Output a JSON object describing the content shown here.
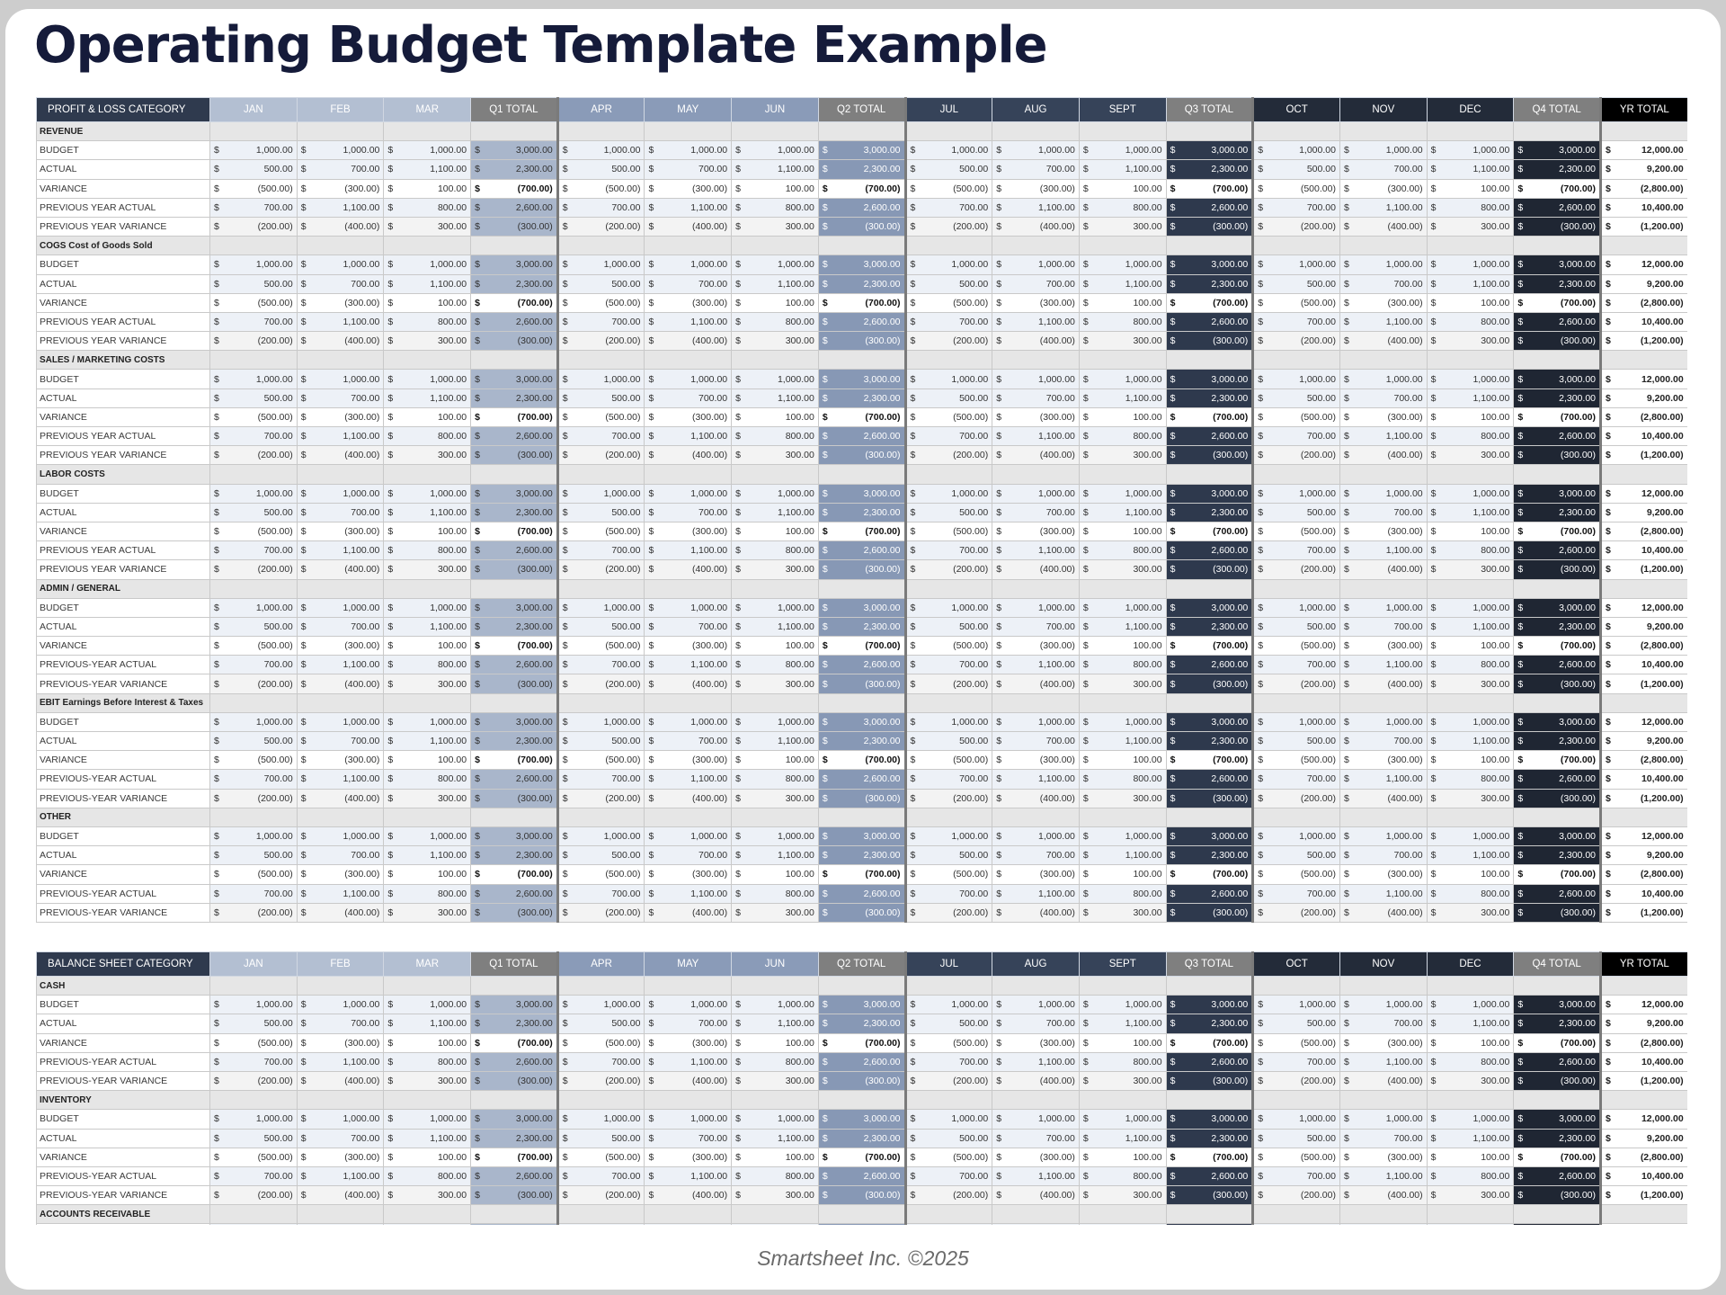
{
  "title": "Operating Budget Template Example",
  "footer": "Smartsheet Inc. ©2025",
  "columns": [
    {
      "label": "JAN",
      "group": "g1"
    },
    {
      "label": "FEB",
      "group": "g1"
    },
    {
      "label": "MAR",
      "group": "g1"
    },
    {
      "label": "Q1 TOTAL",
      "group": "t1"
    },
    {
      "label": "APR",
      "group": "g2"
    },
    {
      "label": "MAY",
      "group": "g2"
    },
    {
      "label": "JUN",
      "group": "g2"
    },
    {
      "label": "Q2 TOTAL",
      "group": "t2"
    },
    {
      "label": "JUL",
      "group": "g3"
    },
    {
      "label": "AUG",
      "group": "g3"
    },
    {
      "label": "SEPT",
      "group": "g3"
    },
    {
      "label": "Q3 TOTAL",
      "group": "t3"
    },
    {
      "label": "OCT",
      "group": "g4"
    },
    {
      "label": "NOV",
      "group": "g4"
    },
    {
      "label": "DEC",
      "group": "g4"
    },
    {
      "label": "Q4 TOTAL",
      "group": "t4"
    },
    {
      "label": "YR TOTAL",
      "group": "yr"
    }
  ],
  "currency_symbol": "$",
  "row_values": {
    "budget": [
      "1,000.00",
      "1,000.00",
      "1,000.00",
      "3,000.00",
      "1,000.00",
      "1,000.00",
      "1,000.00",
      "3,000.00",
      "1,000.00",
      "1,000.00",
      "1,000.00",
      "3,000.00",
      "1,000.00",
      "1,000.00",
      "1,000.00",
      "3,000.00",
      "12,000.00"
    ],
    "actual": [
      "500.00",
      "700.00",
      "1,100.00",
      "2,300.00",
      "500.00",
      "700.00",
      "1,100.00",
      "2,300.00",
      "500.00",
      "700.00",
      "1,100.00",
      "2,300.00",
      "500.00",
      "700.00",
      "1,100.00",
      "2,300.00",
      "9,200.00"
    ],
    "variance": [
      "(500.00)",
      "(300.00)",
      "100.00",
      "(700.00)",
      "(500.00)",
      "(300.00)",
      "100.00",
      "(700.00)",
      "(500.00)",
      "(300.00)",
      "100.00",
      "(700.00)",
      "(500.00)",
      "(300.00)",
      "100.00",
      "(700.00)",
      "(2,800.00)"
    ],
    "pya": [
      "700.00",
      "1,100.00",
      "800.00",
      "2,600.00",
      "700.00",
      "1,100.00",
      "800.00",
      "2,600.00",
      "700.00",
      "1,100.00",
      "800.00",
      "2,600.00",
      "700.00",
      "1,100.00",
      "800.00",
      "2,600.00",
      "10,400.00"
    ],
    "pyv": [
      "(200.00)",
      "(400.00)",
      "300.00",
      "(300.00)",
      "(200.00)",
      "(400.00)",
      "300.00",
      "(300.00)",
      "(200.00)",
      "(400.00)",
      "300.00",
      "(300.00)",
      "(200.00)",
      "(400.00)",
      "300.00",
      "(300.00)",
      "(1,200.00)"
    ]
  },
  "tables": [
    {
      "header_label": "PROFIT & LOSS CATEGORY",
      "sections": [
        {
          "name": "REVENUE",
          "rows": [
            {
              "label": "BUDGET",
              "values": "budget"
            },
            {
              "label": "ACTUAL",
              "values": "actual"
            },
            {
              "label": "VARIANCE",
              "values": "variance"
            },
            {
              "label": "PREVIOUS YEAR ACTUAL",
              "values": "pya"
            },
            {
              "label": "PREVIOUS YEAR VARIANCE",
              "values": "pyv"
            }
          ]
        },
        {
          "name": "COGS Cost of Goods Sold",
          "rows": [
            {
              "label": "BUDGET",
              "values": "budget"
            },
            {
              "label": "ACTUAL",
              "values": "actual"
            },
            {
              "label": "VARIANCE",
              "values": "variance"
            },
            {
              "label": "PREVIOUS YEAR ACTUAL",
              "values": "pya"
            },
            {
              "label": "PREVIOUS YEAR VARIANCE",
              "values": "pyv"
            }
          ]
        },
        {
          "name": "SALES / MARKETING COSTS",
          "rows": [
            {
              "label": "BUDGET",
              "values": "budget"
            },
            {
              "label": "ACTUAL",
              "values": "actual"
            },
            {
              "label": "VARIANCE",
              "values": "variance"
            },
            {
              "label": "PREVIOUS YEAR ACTUAL",
              "values": "pya"
            },
            {
              "label": "PREVIOUS YEAR VARIANCE",
              "values": "pyv"
            }
          ]
        },
        {
          "name": "LABOR COSTS",
          "rows": [
            {
              "label": "BUDGET",
              "values": "budget"
            },
            {
              "label": "ACTUAL",
              "values": "actual"
            },
            {
              "label": "VARIANCE",
              "values": "variance"
            },
            {
              "label": "PREVIOUS YEAR ACTUAL",
              "values": "pya"
            },
            {
              "label": "PREVIOUS YEAR VARIANCE",
              "values": "pyv"
            }
          ]
        },
        {
          "name": "ADMIN / GENERAL",
          "rows": [
            {
              "label": "BUDGET",
              "values": "budget"
            },
            {
              "label": "ACTUAL",
              "values": "actual"
            },
            {
              "label": "VARIANCE",
              "values": "variance"
            },
            {
              "label": "PREVIOUS-YEAR ACTUAL",
              "values": "pya"
            },
            {
              "label": "PREVIOUS-YEAR VARIANCE",
              "values": "pyv"
            }
          ]
        },
        {
          "name": "EBIT Earnings Before Interest & Taxes",
          "rows": [
            {
              "label": "BUDGET",
              "values": "budget"
            },
            {
              "label": "ACTUAL",
              "values": "actual"
            },
            {
              "label": "VARIANCE",
              "values": "variance"
            },
            {
              "label": "PREVIOUS-YEAR ACTUAL",
              "values": "pya"
            },
            {
              "label": "PREVIOUS-YEAR VARIANCE",
              "values": "pyv"
            }
          ]
        },
        {
          "name": "OTHER",
          "rows": [
            {
              "label": "BUDGET",
              "values": "budget"
            },
            {
              "label": "ACTUAL",
              "values": "actual"
            },
            {
              "label": "VARIANCE",
              "values": "variance"
            },
            {
              "label": "PREVIOUS-YEAR ACTUAL",
              "values": "pya"
            },
            {
              "label": "PREVIOUS-YEAR VARIANCE",
              "values": "pyv"
            }
          ]
        }
      ]
    },
    {
      "header_label": "BALANCE SHEET CATEGORY",
      "sections": [
        {
          "name": "CASH",
          "rows": [
            {
              "label": "BUDGET",
              "values": "budget"
            },
            {
              "label": "ACTUAL",
              "values": "actual"
            },
            {
              "label": "VARIANCE",
              "values": "variance"
            },
            {
              "label": "PREVIOUS-YEAR ACTUAL",
              "values": "pya"
            },
            {
              "label": "PREVIOUS-YEAR VARIANCE",
              "values": "pyv"
            }
          ]
        },
        {
          "name": "INVENTORY",
          "rows": [
            {
              "label": "BUDGET",
              "values": "budget"
            },
            {
              "label": "ACTUAL",
              "values": "actual"
            },
            {
              "label": "VARIANCE",
              "values": "variance"
            },
            {
              "label": "PREVIOUS-YEAR ACTUAL",
              "values": "pya"
            },
            {
              "label": "PREVIOUS-YEAR VARIANCE",
              "values": "pyv"
            }
          ]
        },
        {
          "name": "ACCOUNTS RECEIVABLE",
          "rows": []
        }
      ]
    }
  ]
}
